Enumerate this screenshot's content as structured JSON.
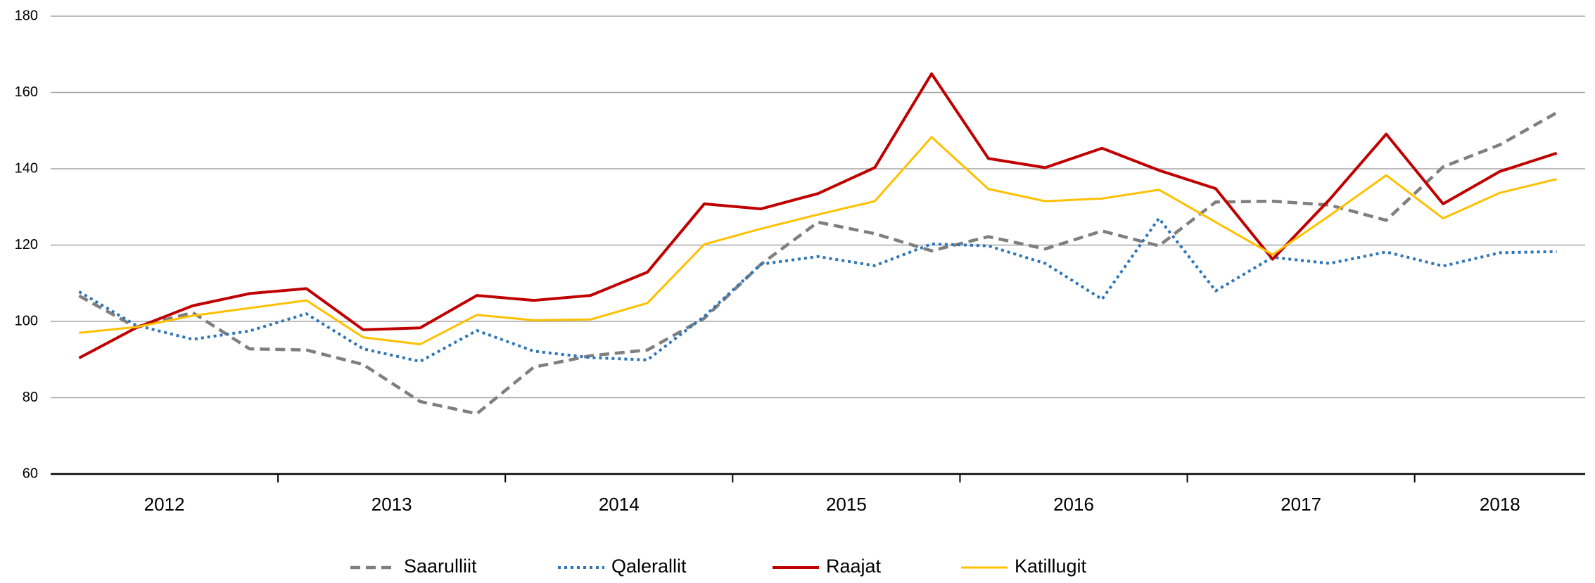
{
  "chart_data": {
    "type": "line",
    "x_labels": [
      "2012",
      "2013",
      "2014",
      "2015",
      "2016",
      "2017",
      "2018"
    ],
    "ylim": [
      60,
      180
    ],
    "yticks": [
      60,
      80,
      100,
      120,
      140,
      160,
      180
    ],
    "grid": true,
    "series": [
      {
        "name": "Saarulliit",
        "color": "#7f7f7f",
        "style": "dashed",
        "values": [
          106.7,
          98.5,
          102.3,
          92.8,
          92.5,
          88.7,
          79,
          75.8,
          88,
          91,
          92.5,
          100.8,
          115,
          126,
          123,
          118.5,
          122.2,
          119,
          123.7,
          119.8,
          131.3,
          131.5,
          130.5,
          126.5,
          140.5,
          146.3,
          154.7
        ]
      },
      {
        "name": "Qalerallit",
        "color": "#2e75b6",
        "style": "dotted",
        "values": [
          107.8,
          99,
          95.3,
          97.5,
          102,
          92.8,
          89.5,
          97.6,
          92.2,
          90.5,
          89.9,
          101.3,
          115,
          117,
          114.6,
          120.3,
          119.8,
          115.2,
          105.8,
          127,
          108,
          116.8,
          115.2,
          118.2,
          114.5,
          118,
          118.3
        ]
      },
      {
        "name": "Raajat",
        "color": "#c00000",
        "style": "solid",
        "values": [
          90.4,
          98.3,
          104.1,
          107.3,
          108.6,
          97.8,
          98.3,
          106.8,
          105.5,
          106.8,
          112.9,
          130.8,
          129.5,
          133.5,
          140.3,
          164.9,
          142.7,
          140.3,
          145.4,
          139.6,
          134.8,
          116.3,
          131.9,
          149.1,
          130.8,
          139.3,
          144.1
        ]
      },
      {
        "name": "Katillugit",
        "color": "#ffc000",
        "style": "solid",
        "values": [
          97,
          98.5,
          101.5,
          103.5,
          105.5,
          95.8,
          94,
          101.7,
          100.3,
          100.5,
          104.8,
          120.2,
          124.3,
          128,
          131.5,
          148.3,
          134.7,
          131.5,
          132.2,
          134.5,
          126,
          117.5,
          127.7,
          138.3,
          127,
          133.7,
          137.3
        ]
      }
    ]
  }
}
